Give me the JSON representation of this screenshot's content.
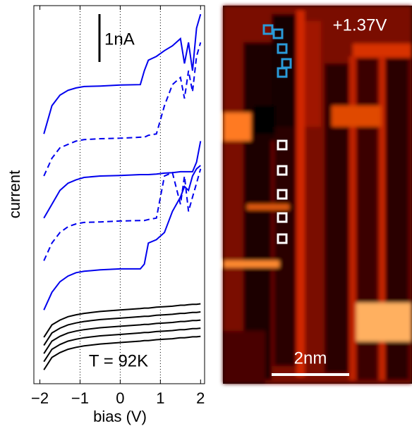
{
  "chart_data": {
    "type": "line",
    "xlabel": "bias (V)",
    "ylabel": "current",
    "xlim": [
      -2.15,
      2.1
    ],
    "ylim": [
      0,
      7.9
    ],
    "xticks": [
      {
        "value": -2,
        "label": "−2"
      },
      {
        "value": -1,
        "label": "−1"
      },
      0,
      1,
      2
    ],
    "grid": "x",
    "x": [
      -1.9,
      -1.7,
      -1.5,
      -1.3,
      -1.1,
      -0.9,
      -0.5,
      0,
      0.5,
      0.6,
      0.7,
      0.9,
      1.1,
      1.3,
      1.5,
      1.6,
      1.7,
      1.8,
      1.9,
      2.0
    ],
    "series": [
      {
        "color": "#0000ee",
        "linestyle": "solid",
        "values": [
          5.22,
          5.81,
          6.03,
          6.13,
          6.18,
          6.21,
          6.22,
          6.24,
          6.25,
          6.54,
          6.76,
          6.84,
          6.96,
          7.06,
          7.21,
          6.69,
          7.13,
          6.54,
          7.43,
          7.72
        ]
      },
      {
        "color": "#0000ee",
        "linestyle": "dashed",
        "values": [
          4.34,
          4.71,
          4.93,
          5.0,
          5.07,
          5.1,
          5.12,
          5.13,
          5.15,
          5.15,
          5.19,
          5.22,
          5.81,
          6.25,
          6.4,
          5.96,
          6.54,
          6.1,
          6.84,
          7.13
        ]
      },
      {
        "color": "#0000ee",
        "linestyle": "solid",
        "values": [
          3.46,
          3.75,
          4.04,
          4.19,
          4.26,
          4.31,
          4.34,
          4.35,
          4.37,
          4.37,
          4.37,
          4.38,
          4.4,
          4.41,
          4.43,
          4.43,
          4.43,
          4.43,
          4.63,
          5.07
        ]
      },
      {
        "color": "#0000ee",
        "linestyle": "dashed",
        "values": [
          2.57,
          2.94,
          3.16,
          3.28,
          3.34,
          3.37,
          3.38,
          3.4,
          3.41,
          3.41,
          3.43,
          3.46,
          4.34,
          4.41,
          3.75,
          4.34,
          3.6,
          3.9,
          4.19,
          4.49
        ]
      },
      {
        "color": "#0000ee",
        "linestyle": "solid",
        "values": [
          1.54,
          1.91,
          2.13,
          2.25,
          2.32,
          2.35,
          2.38,
          2.4,
          2.4,
          2.5,
          2.94,
          3.01,
          3.16,
          3.6,
          3.9,
          4.12,
          4.04,
          4.34,
          4.49,
          4.56
        ]
      },
      {
        "color": "#000000",
        "linestyle": "solid",
        "values": [
          0.29,
          0.55,
          0.65,
          0.72,
          0.76,
          0.79,
          0.83,
          0.86,
          0.89,
          0.9,
          0.9,
          0.92,
          0.93,
          0.94,
          0.96,
          0.96,
          0.97,
          0.98,
          0.98,
          0.99
        ]
      },
      {
        "color": "#000000",
        "linestyle": "solid",
        "values": [
          0.46,
          0.72,
          0.82,
          0.89,
          0.93,
          0.96,
          1.0,
          1.03,
          1.06,
          1.07,
          1.07,
          1.09,
          1.1,
          1.11,
          1.13,
          1.13,
          1.14,
          1.15,
          1.15,
          1.16
        ]
      },
      {
        "color": "#000000",
        "linestyle": "solid",
        "values": [
          0.63,
          0.89,
          0.99,
          1.06,
          1.1,
          1.13,
          1.17,
          1.2,
          1.23,
          1.24,
          1.24,
          1.26,
          1.27,
          1.28,
          1.3,
          1.3,
          1.31,
          1.32,
          1.32,
          1.33
        ]
      },
      {
        "color": "#000000",
        "linestyle": "solid",
        "values": [
          0.8,
          1.06,
          1.16,
          1.23,
          1.27,
          1.3,
          1.34,
          1.37,
          1.4,
          1.41,
          1.41,
          1.43,
          1.44,
          1.45,
          1.47,
          1.47,
          1.48,
          1.49,
          1.49,
          1.5
        ]
      },
      {
        "color": "#000000",
        "linestyle": "solid",
        "values": [
          0.97,
          1.23,
          1.33,
          1.4,
          1.44,
          1.47,
          1.51,
          1.54,
          1.57,
          1.58,
          1.58,
          1.6,
          1.61,
          1.62,
          1.64,
          1.64,
          1.65,
          1.66,
          1.66,
          1.67
        ]
      }
    ],
    "scale_bar": {
      "value": 1,
      "label": "1nA"
    },
    "annotation": "T = 92K"
  },
  "image": {
    "label": "+1.37V",
    "scale_bar": "2nm"
  }
}
